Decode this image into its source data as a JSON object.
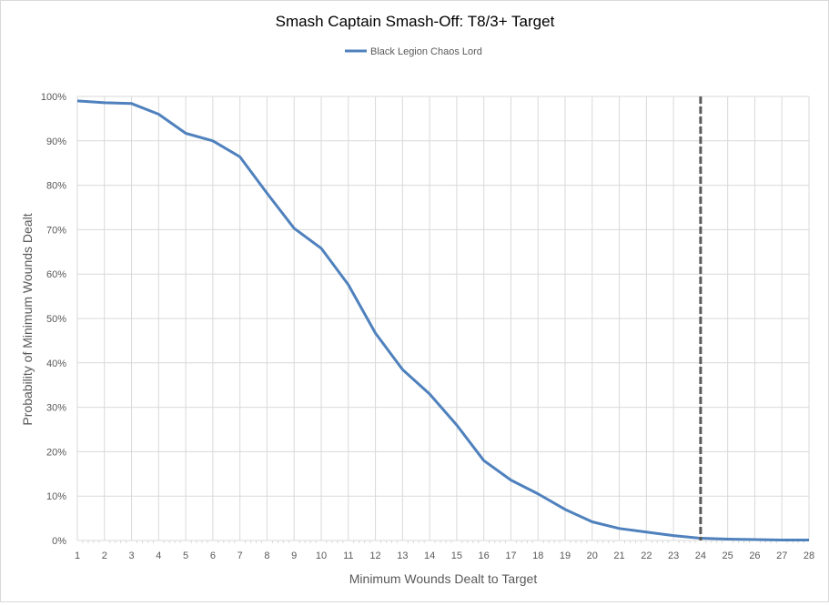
{
  "chart_data": {
    "type": "line",
    "title": "Smash Captain Smash-Off: T8/3+ Target",
    "xlabel": "Minimum Wounds Dealt  to Target",
    "ylabel": "Probability of Minimum Wounds Dealt",
    "x": [
      1,
      2,
      3,
      4,
      5,
      6,
      7,
      8,
      9,
      10,
      11,
      12,
      13,
      14,
      15,
      16,
      17,
      18,
      19,
      20,
      21,
      22,
      23,
      24,
      25,
      26,
      27,
      28
    ],
    "series": [
      {
        "name": "Black Legion Chaos Lord",
        "color": "#4f81bd",
        "values": [
          99.0,
          98.6,
          98.4,
          96.0,
          91.7,
          90.0,
          86.4,
          78.2,
          70.3,
          65.8,
          57.6,
          46.7,
          38.5,
          33.0,
          26.0,
          18.0,
          13.6,
          10.5,
          7.0,
          4.2,
          2.7,
          1.9,
          1.1,
          0.5,
          0.3,
          0.2,
          0.1,
          0.1
        ]
      }
    ],
    "ylim": [
      0,
      100
    ],
    "yticks": [
      "0%",
      "10%",
      "20%",
      "30%",
      "40%",
      "50%",
      "60%",
      "70%",
      "80%",
      "90%",
      "100%"
    ],
    "grid": true,
    "legend_position": "top",
    "reference_line": {
      "x": 24,
      "style": "dashed",
      "color": "#595959"
    }
  }
}
